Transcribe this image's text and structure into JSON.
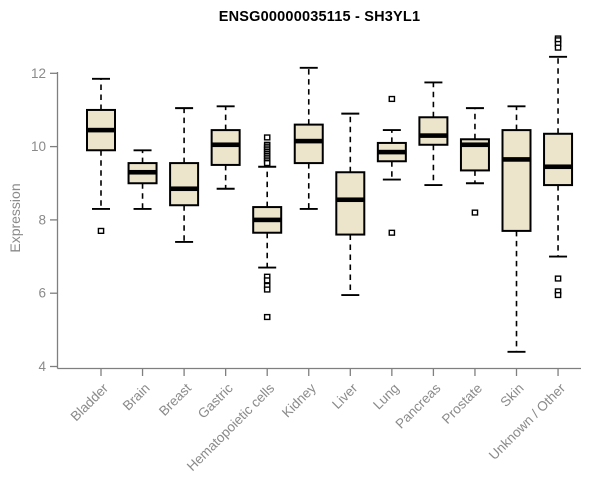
{
  "chart_data": {
    "type": "boxplot",
    "title": "ENSG00000035115 - SH3YL1",
    "ylabel": "Expression",
    "ylim": [
      3.9,
      13.1
    ],
    "yticks": [
      4,
      6,
      8,
      10,
      12
    ],
    "grid": false,
    "legend": "none",
    "box_fill": "#ece5cb",
    "box_border": "#000000",
    "axis_color": "#7f7f7f",
    "label_color": "#8a8a8a",
    "categories": [
      "Bladder",
      "Brain",
      "Breast",
      "Gastric",
      "Hematopoietic cells",
      "Kidney",
      "Liver",
      "Lung",
      "Pancreas",
      "Prostate",
      "Skin",
      "Unknown / Other"
    ],
    "boxes": [
      {
        "category": "Bladder",
        "whisker_low": 8.3,
        "q1": 9.9,
        "median": 10.45,
        "q3": 11.0,
        "whisker_high": 11.85,
        "outliers": [
          7.7
        ]
      },
      {
        "category": "Brain",
        "whisker_low": 8.3,
        "q1": 9.0,
        "median": 9.3,
        "q3": 9.55,
        "whisker_high": 9.9,
        "outliers": []
      },
      {
        "category": "Breast",
        "whisker_low": 7.4,
        "q1": 8.4,
        "median": 8.85,
        "q3": 9.55,
        "whisker_high": 11.05,
        "outliers": []
      },
      {
        "category": "Gastric",
        "whisker_low": 8.85,
        "q1": 9.5,
        "median": 10.05,
        "q3": 10.45,
        "whisker_high": 11.1,
        "outliers": []
      },
      {
        "category": "Hematopoietic cells",
        "whisker_low": 6.7,
        "q1": 7.65,
        "median": 8.0,
        "q3": 8.35,
        "whisker_high": 9.45,
        "outliers": [
          10.25,
          10.05,
          10.0,
          9.95,
          9.9,
          9.85,
          9.8,
          9.75,
          9.7,
          9.65,
          9.6,
          9.55,
          6.45,
          6.35,
          6.2,
          6.1,
          5.35
        ]
      },
      {
        "category": "Kidney",
        "whisker_low": 8.3,
        "q1": 9.55,
        "median": 10.15,
        "q3": 10.6,
        "whisker_high": 12.15,
        "outliers": []
      },
      {
        "category": "Liver",
        "whisker_low": 5.95,
        "q1": 7.6,
        "median": 8.55,
        "q3": 9.3,
        "whisker_high": 10.9,
        "outliers": []
      },
      {
        "category": "Lung",
        "whisker_low": 9.1,
        "q1": 9.6,
        "median": 9.85,
        "q3": 10.1,
        "whisker_high": 10.45,
        "outliers": [
          11.3,
          7.65
        ]
      },
      {
        "category": "Pancreas",
        "whisker_low": 8.95,
        "q1": 10.05,
        "median": 10.3,
        "q3": 10.8,
        "whisker_high": 11.75,
        "outliers": []
      },
      {
        "category": "Prostate",
        "whisker_low": 9.0,
        "q1": 9.35,
        "median": 10.05,
        "q3": 10.2,
        "whisker_high": 11.05,
        "outliers": [
          8.2
        ]
      },
      {
        "category": "Skin",
        "whisker_low": 4.4,
        "q1": 7.7,
        "median": 9.65,
        "q3": 10.45,
        "whisker_high": 11.1,
        "outliers": []
      },
      {
        "category": "Unknown / Other",
        "whisker_low": 7.0,
        "q1": 8.95,
        "median": 9.45,
        "q3": 10.35,
        "whisker_high": 12.45,
        "outliers": [
          12.95,
          12.9,
          12.8,
          12.7,
          6.4,
          6.05,
          5.95
        ]
      }
    ]
  }
}
